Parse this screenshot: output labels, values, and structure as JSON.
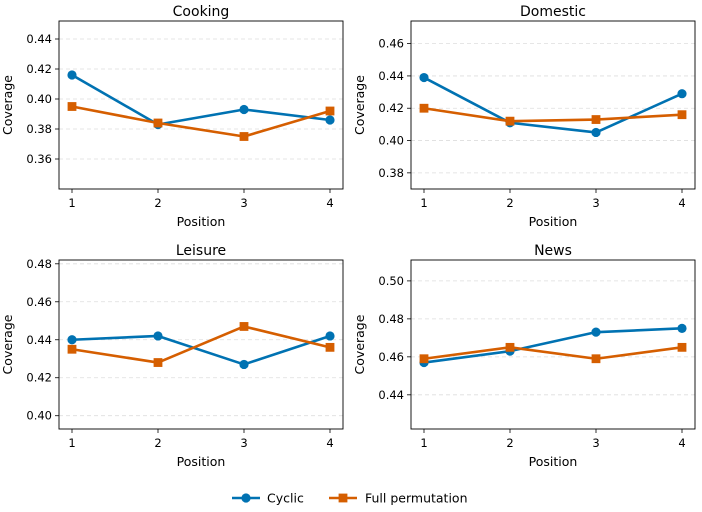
{
  "chart_data": [
    {
      "type": "line",
      "title": "Cooking",
      "xlabel": "Position",
      "ylabel": "Coverage",
      "x": [
        1,
        2,
        3,
        4
      ],
      "ylim": [
        0.34,
        0.452
      ],
      "yticks": [
        0.36,
        0.38,
        0.4,
        0.42,
        0.44
      ],
      "ytick_labels": [
        "0.36",
        "0.38",
        "0.40",
        "0.42",
        "0.44"
      ],
      "grid": "horizontal-dashed",
      "series": [
        {
          "name": "Cyclic",
          "values": [
            0.416,
            0.383,
            0.393,
            0.386
          ]
        },
        {
          "name": "Full permutation",
          "values": [
            0.395,
            0.384,
            0.375,
            0.392
          ]
        }
      ]
    },
    {
      "type": "line",
      "title": "Domestic",
      "xlabel": "Position",
      "ylabel": "Coverage",
      "x": [
        1,
        2,
        3,
        4
      ],
      "ylim": [
        0.37,
        0.474
      ],
      "yticks": [
        0.38,
        0.4,
        0.42,
        0.44,
        0.46
      ],
      "ytick_labels": [
        "0.38",
        "0.40",
        "0.42",
        "0.44",
        "0.46"
      ],
      "grid": "horizontal-dashed",
      "series": [
        {
          "name": "Cyclic",
          "values": [
            0.439,
            0.411,
            0.405,
            0.429
          ]
        },
        {
          "name": "Full permutation",
          "values": [
            0.42,
            0.412,
            0.413,
            0.416
          ]
        }
      ]
    },
    {
      "type": "line",
      "title": "Leisure",
      "xlabel": "Position",
      "ylabel": "Coverage",
      "x": [
        1,
        2,
        3,
        4
      ],
      "ylim": [
        0.393,
        0.482
      ],
      "yticks": [
        0.4,
        0.42,
        0.44,
        0.46,
        0.48
      ],
      "ytick_labels": [
        "0.40",
        "0.42",
        "0.44",
        "0.46",
        "0.48"
      ],
      "grid": "horizontal-dashed",
      "series": [
        {
          "name": "Cyclic",
          "values": [
            0.44,
            0.442,
            0.427,
            0.442
          ]
        },
        {
          "name": "Full permutation",
          "values": [
            0.435,
            0.428,
            0.447,
            0.436
          ]
        }
      ]
    },
    {
      "type": "line",
      "title": "News",
      "xlabel": "Position",
      "ylabel": "Coverage",
      "x": [
        1,
        2,
        3,
        4
      ],
      "ylim": [
        0.422,
        0.511
      ],
      "yticks": [
        0.44,
        0.46,
        0.48,
        0.5
      ],
      "ytick_labels": [
        "0.44",
        "0.46",
        "0.48",
        "0.50"
      ],
      "grid": "horizontal-dashed",
      "series": [
        {
          "name": "Cyclic",
          "values": [
            0.457,
            0.463,
            0.473,
            0.475
          ]
        },
        {
          "name": "Full permutation",
          "values": [
            0.459,
            0.465,
            0.459,
            0.465
          ]
        }
      ]
    }
  ],
  "legend": {
    "placement": "bottom-center",
    "items": [
      {
        "label": "Cyclic",
        "color": "#0072b2",
        "marker": "circle"
      },
      {
        "label": "Full permutation",
        "color": "#d55e00",
        "marker": "square"
      }
    ]
  },
  "colors": {
    "cyclic": "#0072b2",
    "full_permutation": "#d55e00",
    "grid": "#dddddd",
    "axes": "#000000"
  }
}
